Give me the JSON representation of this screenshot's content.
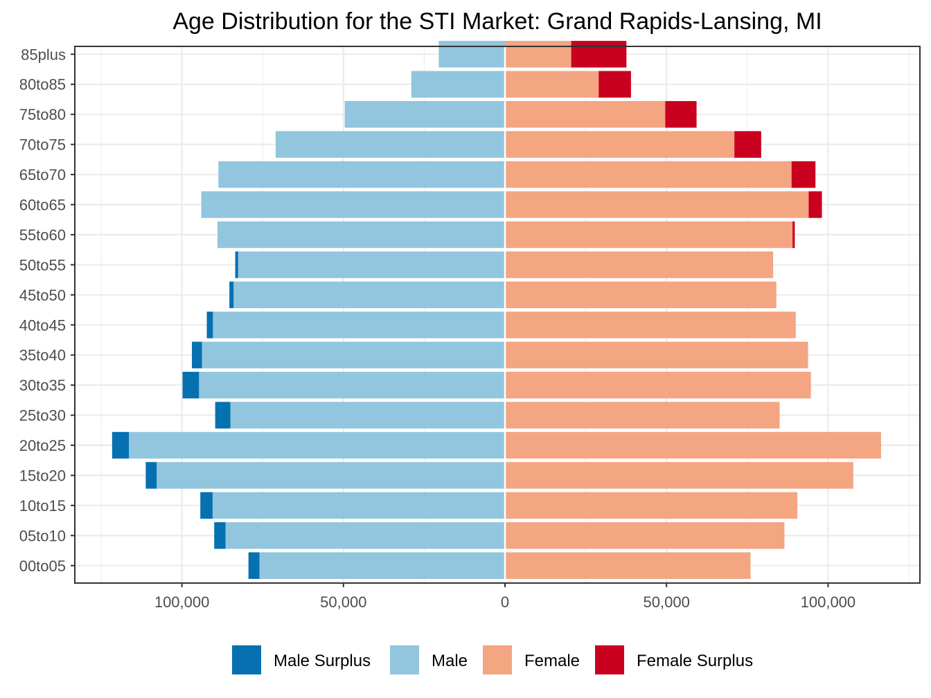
{
  "chart_data": {
    "type": "bar",
    "orientation": "horizontal",
    "layout": "population-pyramid",
    "title": "Age Distribution for the STI Market: Grand Rapids-Lansing, MI",
    "xlabel": "",
    "ylabel": "",
    "categories": [
      "00to05",
      "05to10",
      "10to15",
      "15to20",
      "20to25",
      "25to30",
      "30to35",
      "35to40",
      "40to45",
      "45to50",
      "50to55",
      "55to60",
      "60to65",
      "65to70",
      "70to75",
      "75to80",
      "80to85",
      "85plus"
    ],
    "xlim": [
      -128000,
      128000
    ],
    "x_ticks": [
      -100000,
      -50000,
      0,
      50000,
      100000
    ],
    "x_tick_labels": [
      "100,000",
      "50,000",
      "0",
      "50,000",
      "100,000"
    ],
    "grid": true,
    "legend_position": "bottom",
    "series": [
      {
        "name": "Male Surplus",
        "color": "#0571b0",
        "side": "left",
        "values": [
          3400,
          3500,
          3800,
          3400,
          5200,
          4700,
          5100,
          3100,
          1900,
          1300,
          900,
          0,
          0,
          0,
          0,
          0,
          0,
          0
        ]
      },
      {
        "name": "Male",
        "color": "#92c5de",
        "side": "left",
        "values": [
          76000,
          86500,
          90500,
          107800,
          116400,
          85000,
          94700,
          93800,
          90400,
          84000,
          82600,
          89000,
          94000,
          88700,
          71000,
          49600,
          29000,
          20500
        ]
      },
      {
        "name": "Female",
        "color": "#f4a582",
        "side": "right",
        "values": [
          76000,
          86500,
          90500,
          107800,
          116400,
          85000,
          94700,
          93800,
          90000,
          84000,
          83000,
          89000,
          94000,
          88700,
          71000,
          49600,
          29000,
          20500
        ]
      },
      {
        "name": "Female Surplus",
        "color": "#ca0020",
        "side": "right",
        "values": [
          0,
          0,
          0,
          0,
          0,
          0,
          0,
          0,
          0,
          0,
          0,
          700,
          4100,
          7400,
          8300,
          9700,
          10000,
          17100
        ]
      }
    ]
  }
}
